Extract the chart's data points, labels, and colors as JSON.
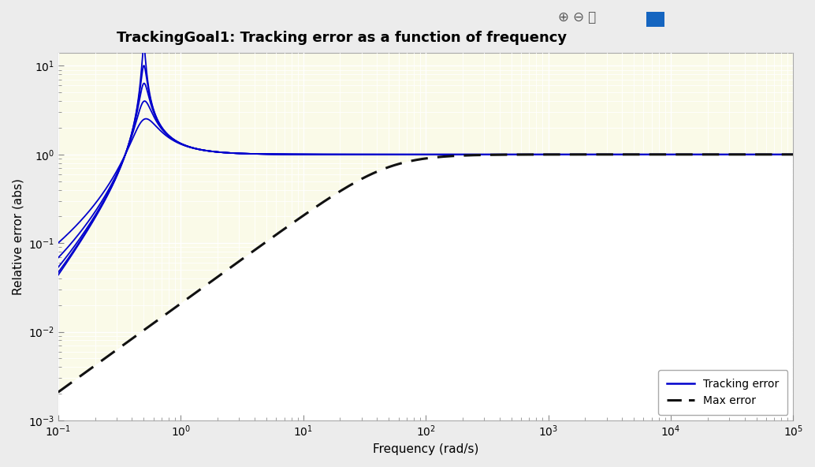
{
  "title": "TrackingGoal1: Tracking error as a function of frequency",
  "xlabel": "Frequency (rad/s)",
  "ylabel": "Relative error (abs)",
  "figure_bg_color": "#ececec",
  "plot_bg_color": "#fafae8",
  "fill_below_color": "#ffffff",
  "grid_major_color": "#ffffff",
  "grid_minor_color": "#ffffff",
  "legend_labels": [
    "Tracking error",
    "Max error"
  ],
  "tracking_color": "#0000cc",
  "max_error_color": "#111111",
  "title_fontsize": 13,
  "axis_label_fontsize": 11,
  "tick_fontsize": 10,
  "resonant_freq": 0.5,
  "damping_factors": [
    0.03,
    0.05,
    0.08,
    0.13,
    0.22
  ],
  "wc_max_error": 48.0,
  "toolbar_icons": "⊕ ⊖ ✋",
  "toolbar_icon_color": "#555555",
  "toolbar_blue_icon_color": "#1565c0"
}
